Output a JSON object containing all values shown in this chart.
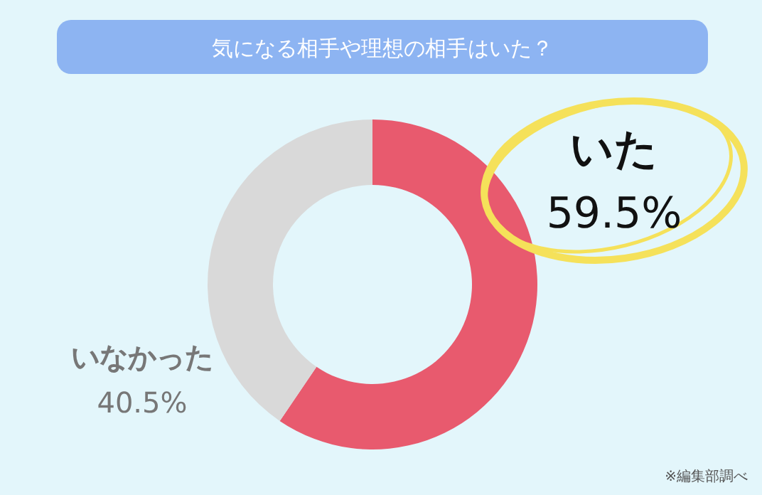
{
  "chart_data": {
    "type": "donut",
    "title": "気になる相手や理想の相手はいた？",
    "categories": [
      "いた",
      "いなかった"
    ],
    "values": [
      59.5,
      40.5
    ],
    "colors": [
      "#e85a6e",
      "#d9d9d9"
    ],
    "value_labels": [
      "59.5%",
      "40.5%"
    ],
    "annotations": [
      "※編集部調べ"
    ]
  }
}
